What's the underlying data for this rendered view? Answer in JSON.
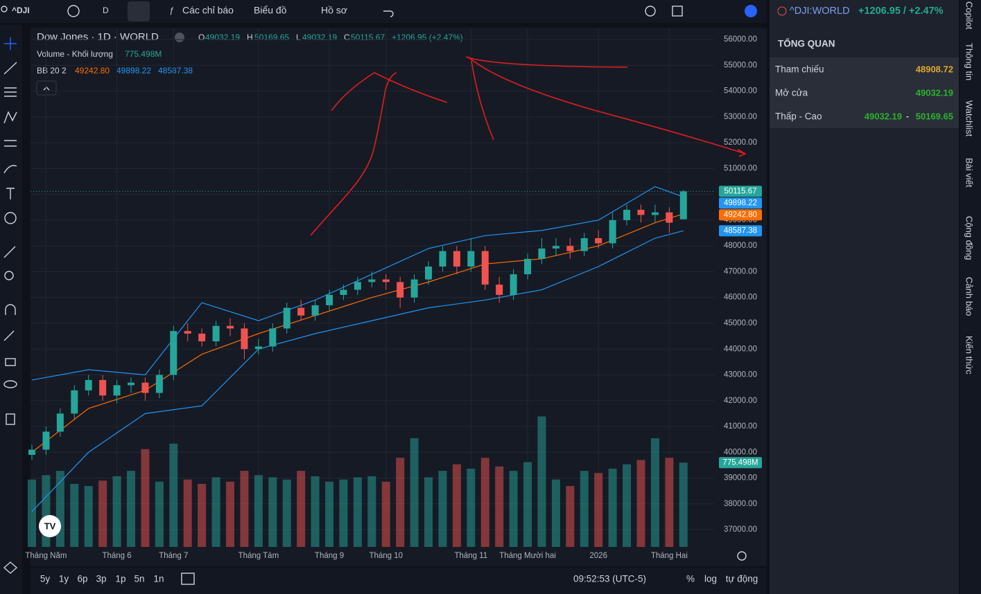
{
  "toolbar": {
    "symbol": "^DJI",
    "interval": "D",
    "indicators": "Các chỉ báo",
    "chart": "Biểu đồ",
    "profile": "Hồ sơ"
  },
  "chart_data": {
    "type": "candlestick",
    "title": "Dow Jones · 1D · WORLD",
    "ohlc_labels": [
      "O",
      "H",
      "L",
      "C"
    ],
    "change_label": "+1206.95 (+2.47%)",
    "volume_legend": "Volume - Khối lượng",
    "volume_last_label": "775.498M",
    "bb_legend": "BB 20 2",
    "categories": [
      null,
      "Tháng Năm",
      null,
      null,
      null,
      null,
      "Tháng 6",
      null,
      null,
      null,
      "Tháng 7",
      null,
      null,
      null,
      null,
      null,
      "Tháng Tám",
      null,
      null,
      null,
      null,
      "Tháng 9",
      null,
      null,
      null,
      "Tháng 10",
      null,
      null,
      null,
      null,
      null,
      "Tháng 11",
      null,
      null,
      null,
      "Tháng Mười hai",
      null,
      null,
      null,
      null,
      "2026",
      null,
      null,
      null,
      null,
      "Tháng Hai",
      null
    ],
    "open": [
      39900,
      40100,
      40800,
      41500,
      42400,
      42800,
      42200,
      42600,
      42700,
      42300,
      43000,
      44700,
      44600,
      44300,
      44900,
      44800,
      44000,
      44100,
      44800,
      45600,
      45300,
      45700,
      46100,
      46300,
      46600,
      46700,
      46600,
      46000,
      46700,
      47200,
      47800,
      47200,
      47800,
      46500,
      46100,
      46900,
      47500,
      47900,
      48000,
      47800,
      48300,
      48100,
      49000,
      49400,
      49200,
      49300,
      49032.19
    ],
    "high": [
      40300,
      41000,
      41700,
      42600,
      43000,
      43000,
      42800,
      42900,
      42900,
      43200,
      44900,
      45000,
      44800,
      45100,
      45200,
      45000,
      44400,
      45000,
      45800,
      45900,
      45900,
      46300,
      46500,
      46800,
      47000,
      46900,
      46800,
      46900,
      47400,
      48000,
      48000,
      48300,
      48000,
      46800,
      47100,
      47700,
      48300,
      48300,
      48300,
      48500,
      48600,
      49300,
      49600,
      49600,
      49600,
      49500,
      50169.65
    ],
    "low": [
      39700,
      39900,
      40600,
      41300,
      42200,
      42000,
      41900,
      42300,
      42000,
      42100,
      42800,
      44300,
      44100,
      44100,
      44500,
      43600,
      43800,
      43900,
      44600,
      45100,
      45100,
      45500,
      45900,
      46100,
      46400,
      46300,
      45600,
      45800,
      46500,
      47000,
      46900,
      47000,
      46300,
      45800,
      45900,
      46700,
      47300,
      47600,
      47500,
      47600,
      47900,
      47900,
      48800,
      48900,
      48900,
      48500,
      49032.19
    ],
    "close": [
      40100,
      40800,
      41500,
      42400,
      42800,
      42200,
      42600,
      42700,
      42300,
      43000,
      44700,
      44600,
      44300,
      44900,
      44800,
      44000,
      44100,
      44800,
      45600,
      45300,
      45700,
      46100,
      46300,
      46600,
      46700,
      46600,
      46000,
      46700,
      47200,
      47800,
      47200,
      47800,
      46500,
      46100,
      46900,
      47500,
      47900,
      48000,
      47800,
      48300,
      48100,
      49000,
      49400,
      49200,
      49300,
      48900,
      50115.67
    ],
    "volume": [
      620,
      660,
      700,
      580,
      560,
      610,
      650,
      700,
      900,
      600,
      950,
      620,
      580,
      640,
      600,
      700,
      660,
      640,
      620,
      700,
      650,
      600,
      620,
      640,
      650,
      600,
      820,
      1000,
      640,
      700,
      760,
      720,
      820,
      740,
      700,
      780,
      1200,
      620,
      560,
      700,
      680,
      720,
      760,
      800,
      1000,
      820,
      775.498
    ],
    "volume_lim": [
      0,
      1210
    ],
    "up_color": "#26a69a",
    "down_color": "#ef5350",
    "bb": {
      "x": [
        0,
        4,
        8,
        12,
        16,
        20,
        24,
        28,
        32,
        36,
        40,
        44,
        46
      ],
      "middle": [
        40000,
        41700,
        42400,
        43800,
        44600,
        45300,
        46000,
        46600,
        47300,
        47500,
        48000,
        48900,
        49242.8
      ],
      "upper": [
        42800,
        43200,
        43000,
        45800,
        45100,
        45900,
        46900,
        47900,
        48400,
        48600,
        49000,
        50300,
        49898.22
      ],
      "lower": [
        37700,
        40000,
        41500,
        41800,
        44000,
        44600,
        45100,
        45600,
        45900,
        46300,
        47200,
        48300,
        48587.38
      ],
      "middle_color": "#ff6d00",
      "band_color": "#2196f3"
    },
    "price_tags": [
      {
        "value": 50115.67,
        "label": "50115.67",
        "color": "#26a69a"
      },
      {
        "value": 49898.22,
        "label": "49898.22",
        "color": "#2196f3"
      },
      {
        "value": 49242.8,
        "label": "49242.80",
        "color": "#ff6d00"
      },
      {
        "value": 48587.38,
        "label": "48587.38",
        "color": "#2196f3"
      }
    ],
    "ylim": [
      36330,
      56460
    ],
    "yticks": [
      {
        "value": 37000,
        "label": "37000.00"
      },
      {
        "value": 38000,
        "label": "38000.00"
      },
      {
        "value": 39000,
        "label": "39000.00"
      },
      {
        "value": 40000,
        "label": "40000.00"
      },
      {
        "value": 41000,
        "label": "41000.00"
      },
      {
        "value": 42000,
        "label": "42000.00"
      },
      {
        "value": 43000,
        "label": "43000.00"
      },
      {
        "value": 44000,
        "label": "44000.00"
      },
      {
        "value": 45000,
        "label": "45000.00"
      },
      {
        "value": 46000,
        "label": "46000.00"
      },
      {
        "value": 47000,
        "label": "47000.00"
      },
      {
        "value": 48000,
        "label": "48000.00"
      },
      {
        "value": 49000,
        "label": "49000.00"
      },
      {
        "value": 50000,
        "label": "50000.00"
      },
      {
        "value": 51000,
        "label": "51000.00"
      },
      {
        "value": 52000,
        "label": "52000.00"
      },
      {
        "value": 53000,
        "label": "53000.00"
      },
      {
        "value": 54000,
        "label": "54000.00"
      },
      {
        "value": 55000,
        "label": "55000.00"
      },
      {
        "value": 56000,
        "label": "56000.00"
      }
    ],
    "grid": true
  },
  "bottom": {
    "ranges": [
      "5y",
      "1y",
      "6p",
      "3p",
      "1p",
      "5n",
      "1n"
    ],
    "clock": "09:52:53 (UTC-5)",
    "scale_buttons": [
      "%",
      "log",
      "tự động"
    ]
  },
  "panel": {
    "symbol": "^DJI:WORLD",
    "change": "+1206.95 / +2.47%",
    "section": "TỔNG QUAN",
    "rows": [
      {
        "label": "Tham chiếu",
        "value": "48908.72"
      },
      {
        "label": "Mở cửa"
      },
      {
        "label": "Thấp - Cao",
        "separator": "-"
      }
    ]
  },
  "tabs": [
    "Copilot",
    "Thông tin",
    "Watchlist",
    "Bài viết",
    "Cộng đồng",
    "Cảnh báo",
    "Kiến thức"
  ]
}
